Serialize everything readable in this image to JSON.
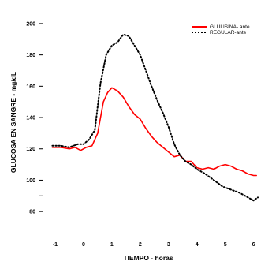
{
  "chart_data": {
    "type": "line",
    "title": "",
    "xlabel": "TIEMPO - horas",
    "ylabel": "GLUCOSA EN SANGRE - mg/dL",
    "xlim": [
      -1.5,
      6.4
    ],
    "ylim": [
      70,
      205
    ],
    "x_ticks": [
      -1,
      0,
      1,
      2,
      3,
      4,
      5,
      6
    ],
    "x_tick_labels": [
      "-1",
      "0",
      "1",
      "2",
      "3",
      "4",
      "5",
      "6"
    ],
    "y_ticks": [
      80,
      100,
      120,
      140,
      160,
      180,
      200
    ],
    "y_tick_labels": [
      "80",
      "100",
      "120",
      "140",
      "160",
      "180",
      "200"
    ],
    "y_tick_marks_only": [
      90
    ],
    "grid": false,
    "legend_position": "top-right",
    "series": [
      {
        "name": "GLULISINA- ante",
        "color": "#ff0000",
        "style": "solid",
        "x": [
          -1.1,
          -0.8,
          -0.5,
          -0.3,
          -0.1,
          0.1,
          0.3,
          0.5,
          0.7,
          0.85,
          1.0,
          1.2,
          1.4,
          1.6,
          1.8,
          2.0,
          2.2,
          2.4,
          2.6,
          2.8,
          3.0,
          3.2,
          3.4,
          3.6,
          3.8,
          4.0,
          4.2,
          4.4,
          4.6,
          4.8,
          5.0,
          5.2,
          5.4,
          5.6,
          5.8,
          6.0,
          6.1
        ],
        "y": [
          121,
          121,
          120,
          121,
          119,
          121,
          122,
          130,
          150,
          156,
          159,
          157,
          153,
          147,
          142,
          139,
          133,
          128,
          124,
          121,
          118,
          115,
          116,
          112,
          112,
          108,
          107,
          108,
          107,
          109,
          110,
          109,
          107,
          106,
          104,
          103,
          103
        ]
      },
      {
        "name": "REGULAR-ante",
        "color": "#000000",
        "style": "dotted",
        "x": [
          -1.1,
          -0.8,
          -0.5,
          -0.2,
          0.0,
          0.2,
          0.4,
          0.6,
          0.8,
          1.0,
          1.2,
          1.4,
          1.6,
          1.8,
          2.0,
          2.2,
          2.4,
          2.6,
          2.8,
          3.0,
          3.2,
          3.4,
          3.6,
          3.8,
          4.0,
          4.3,
          4.6,
          4.9,
          5.2,
          5.5,
          5.8,
          6.0,
          6.15
        ],
        "y": [
          122,
          122,
          121,
          123,
          123,
          126,
          132,
          162,
          180,
          186,
          188,
          193,
          192,
          186,
          180,
          170,
          160,
          151,
          143,
          134,
          123,
          116,
          112,
          110,
          107,
          104,
          100,
          96,
          94,
          92,
          89,
          87,
          89
        ]
      }
    ]
  }
}
